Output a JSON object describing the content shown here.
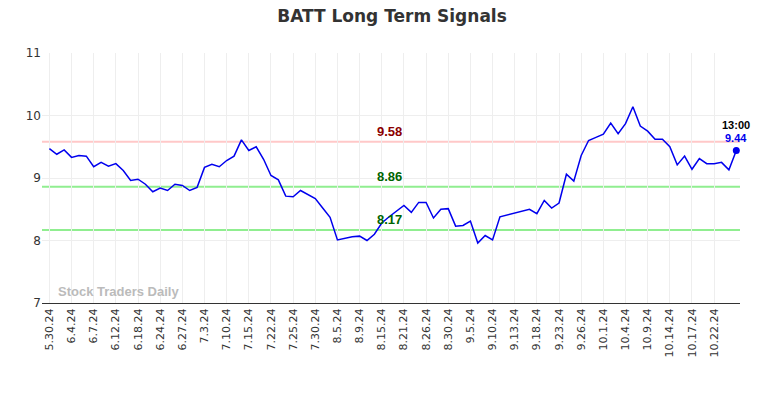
{
  "chart_data": {
    "type": "line",
    "title": "BATT Long Term Signals",
    "color": "#0000ee",
    "grid": true,
    "categories": [
      "5.30.24",
      null,
      null,
      "6.4.24",
      null,
      null,
      "6.7.24",
      null,
      null,
      "6.12.24",
      null,
      null,
      "6.18.24",
      null,
      null,
      "6.24.24",
      null,
      null,
      "6.27.24",
      null,
      null,
      "7.3.24",
      null,
      null,
      "7.10.24",
      null,
      null,
      "7.15.24",
      null,
      null,
      "7.22.24",
      null,
      null,
      "7.25.24",
      null,
      null,
      "7.30.24",
      null,
      null,
      "8.5.24",
      null,
      null,
      "8.9.24",
      null,
      null,
      "8.15.24",
      null,
      null,
      "8.21.24",
      null,
      null,
      "8.26.24",
      null,
      null,
      "8.30.24",
      null,
      null,
      "9.5.24",
      null,
      null,
      "9.10.24",
      null,
      null,
      "9.13.24",
      null,
      null,
      "9.18.24",
      null,
      null,
      "9.23.24",
      null,
      null,
      "9.26.24",
      null,
      null,
      "10.1.24",
      null,
      null,
      "10.4.24",
      null,
      null,
      "10.9.24",
      null,
      null,
      "10.14.24",
      null,
      null,
      "10.17.24",
      null,
      null,
      "10.22.24",
      null,
      null,
      null
    ],
    "values": [
      9.47,
      9.38,
      9.45,
      9.33,
      9.36,
      9.35,
      9.18,
      9.25,
      9.19,
      9.23,
      9.12,
      8.96,
      8.98,
      8.9,
      8.78,
      8.84,
      8.8,
      8.9,
      8.88,
      8.8,
      8.85,
      9.17,
      9.22,
      9.18,
      9.28,
      9.35,
      9.61,
      9.44,
      9.5,
      9.3,
      9.04,
      8.97,
      8.71,
      8.7,
      8.8,
      8.73,
      8.67,
      8.52,
      8.37,
      8.01,
      8.04,
      8.06,
      8.07,
      8.0,
      8.1,
      8.28,
      8.38,
      8.47,
      8.56,
      8.45,
      8.61,
      8.61,
      8.36,
      8.5,
      8.51,
      8.23,
      8.24,
      8.31,
      7.96,
      8.08,
      8.01,
      8.38,
      8.41,
      8.45,
      8.48,
      8.5,
      8.43,
      8.64,
      8.52,
      8.6,
      9.06,
      8.95,
      9.36,
      9.6,
      9.65,
      9.7,
      9.88,
      9.71,
      9.87,
      10.14,
      9.83,
      9.75,
      9.62,
      9.62,
      9.5,
      9.21,
      9.35,
      9.14,
      9.31,
      9.23,
      9.23,
      9.25,
      9.13,
      9.44
    ],
    "ylim": [
      7,
      11
    ],
    "yticks": [
      7,
      8,
      9,
      10,
      11
    ],
    "reference_lines": [
      {
        "value": 9.58,
        "label": "9.58",
        "color": "#ffc8c8",
        "label_color": "#8b0000"
      },
      {
        "value": 8.86,
        "label": "8.86",
        "color": "#90ee90",
        "label_color": "#006400"
      },
      {
        "value": 8.17,
        "label": "8.17",
        "color": "#90ee90",
        "label_color": "#006400"
      }
    ],
    "last_point": {
      "time": "13:00",
      "value_label": "9.44"
    },
    "watermark": "Stock Traders Daily"
  }
}
